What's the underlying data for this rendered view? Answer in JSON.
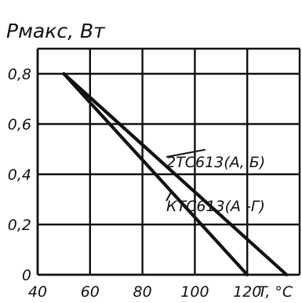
{
  "chart_data": {
    "type": "line",
    "ylabel": "Pмакс, Вт",
    "xlabel": "T, °C",
    "xlim": [
      40,
      140
    ],
    "ylim": [
      0,
      0.9
    ],
    "x_ticks": [
      "40",
      "60",
      "80",
      "100",
      "120"
    ],
    "y_ticks": [
      "0",
      "0,2",
      "0,4",
      "0,6",
      "0,8"
    ],
    "grid": true,
    "series": [
      {
        "name": "2ТС613(А, Б)",
        "x": [
          50,
          135
        ],
        "y": [
          0.8,
          0
        ]
      },
      {
        "name": "КТС613(А -Г)",
        "x": [
          50,
          120
        ],
        "y": [
          0.8,
          0
        ]
      }
    ]
  }
}
